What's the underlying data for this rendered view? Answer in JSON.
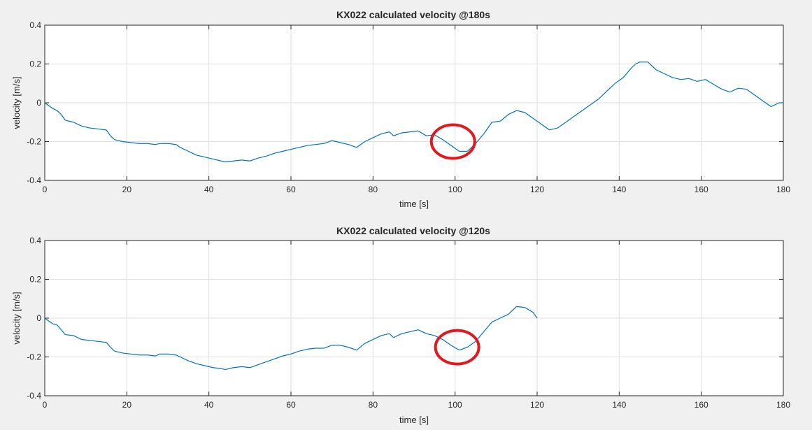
{
  "chart_data": [
    {
      "type": "line",
      "title": "KX022 calculated velocity @180s",
      "xlabel": "time [s]",
      "ylabel": "velocity [m/s]",
      "xlim": [
        0,
        180
      ],
      "ylim": [
        -0.4,
        0.4
      ],
      "xticks": [
        "0",
        "20",
        "40",
        "60",
        "80",
        "100",
        "120",
        "140",
        "160",
        "180"
      ],
      "yticks": [
        "-0.4",
        "-0.2",
        "0",
        "0.2",
        "0.4"
      ],
      "grid": true,
      "series": [
        {
          "color": "#0072bd",
          "x": [
            0,
            2,
            3,
            4,
            5,
            7,
            9,
            11,
            13,
            15,
            16,
            17,
            19,
            21,
            23,
            25,
            27,
            28,
            30,
            32,
            33,
            35,
            37,
            39,
            41,
            43,
            44,
            46,
            48,
            50,
            52,
            54,
            56,
            58,
            60,
            62,
            64,
            66,
            68,
            70,
            72,
            74,
            76,
            78,
            80,
            82,
            84,
            85,
            87,
            89,
            91,
            93,
            95,
            97,
            99,
            101,
            103,
            105,
            107,
            109,
            111,
            113,
            115,
            117,
            119,
            121,
            123,
            125,
            127,
            129,
            131,
            133,
            135,
            137,
            139,
            141,
            143,
            144,
            145,
            147,
            149,
            151,
            153,
            155,
            157,
            159,
            161,
            163,
            165,
            167,
            169,
            171,
            173,
            175,
            177,
            179,
            180
          ],
          "y": [
            0,
            -0.03,
            -0.04,
            -0.06,
            -0.09,
            -0.1,
            -0.12,
            -0.13,
            -0.135,
            -0.14,
            -0.17,
            -0.19,
            -0.2,
            -0.205,
            -0.21,
            -0.21,
            -0.215,
            -0.21,
            -0.21,
            -0.215,
            -0.23,
            -0.25,
            -0.27,
            -0.28,
            -0.29,
            -0.3,
            -0.305,
            -0.3,
            -0.295,
            -0.3,
            -0.285,
            -0.275,
            -0.26,
            -0.25,
            -0.24,
            -0.23,
            -0.22,
            -0.215,
            -0.21,
            -0.195,
            -0.205,
            -0.215,
            -0.23,
            -0.2,
            -0.18,
            -0.16,
            -0.15,
            -0.17,
            -0.155,
            -0.15,
            -0.145,
            -0.17,
            -0.165,
            -0.19,
            -0.22,
            -0.25,
            -0.25,
            -0.21,
            -0.16,
            -0.1,
            -0.095,
            -0.06,
            -0.04,
            -0.05,
            -0.08,
            -0.11,
            -0.14,
            -0.13,
            -0.1,
            -0.07,
            -0.04,
            -0.01,
            0.02,
            0.06,
            0.1,
            0.13,
            0.18,
            0.2,
            0.21,
            0.21,
            0.17,
            0.15,
            0.13,
            0.12,
            0.125,
            0.11,
            0.12,
            0.095,
            0.07,
            0.055,
            0.075,
            0.07,
            0.04,
            0.01,
            -0.02,
            0.0,
            0.0
          ]
        }
      ],
      "annotation": {
        "shape": "ellipse",
        "x": 99.5,
        "y": -0.2,
        "color": "#e0191f"
      }
    },
    {
      "type": "line",
      "title": "KX022 calculated velocity @120s",
      "xlabel": "time [s]",
      "ylabel": "velocity [m/s]",
      "xlim": [
        0,
        180
      ],
      "ylim": [
        -0.4,
        0.4
      ],
      "xticks": [
        "0",
        "20",
        "40",
        "60",
        "80",
        "100",
        "120",
        "140",
        "160",
        "180"
      ],
      "yticks": [
        "-0.4",
        "-0.2",
        "0",
        "0.2",
        "0.4"
      ],
      "grid": true,
      "series": [
        {
          "color": "#0072bd",
          "x": [
            0,
            2,
            3,
            4,
            5,
            7,
            9,
            11,
            13,
            15,
            16,
            17,
            19,
            21,
            23,
            25,
            27,
            28,
            30,
            32,
            33,
            35,
            37,
            39,
            41,
            43,
            44,
            46,
            48,
            50,
            52,
            54,
            56,
            58,
            60,
            62,
            64,
            66,
            68,
            70,
            72,
            74,
            76,
            78,
            80,
            82,
            84,
            85,
            87,
            89,
            91,
            93,
            95,
            97,
            99,
            101,
            103,
            105,
            107,
            109,
            111,
            113,
            115,
            117,
            119,
            120
          ],
          "y": [
            0,
            -0.03,
            -0.035,
            -0.06,
            -0.085,
            -0.09,
            -0.11,
            -0.115,
            -0.12,
            -0.125,
            -0.15,
            -0.17,
            -0.18,
            -0.185,
            -0.19,
            -0.19,
            -0.195,
            -0.185,
            -0.185,
            -0.19,
            -0.2,
            -0.22,
            -0.235,
            -0.245,
            -0.255,
            -0.26,
            -0.265,
            -0.255,
            -0.25,
            -0.255,
            -0.24,
            -0.225,
            -0.21,
            -0.195,
            -0.185,
            -0.17,
            -0.16,
            -0.155,
            -0.155,
            -0.14,
            -0.14,
            -0.15,
            -0.165,
            -0.13,
            -0.11,
            -0.09,
            -0.08,
            -0.1,
            -0.08,
            -0.07,
            -0.06,
            -0.08,
            -0.09,
            -0.11,
            -0.14,
            -0.165,
            -0.15,
            -0.12,
            -0.07,
            -0.02,
            0.0,
            0.02,
            0.06,
            0.055,
            0.03,
            0.0
          ]
        }
      ],
      "annotation": {
        "shape": "ellipse",
        "x": 100.5,
        "y": -0.15,
        "color": "#e0191f"
      }
    }
  ]
}
